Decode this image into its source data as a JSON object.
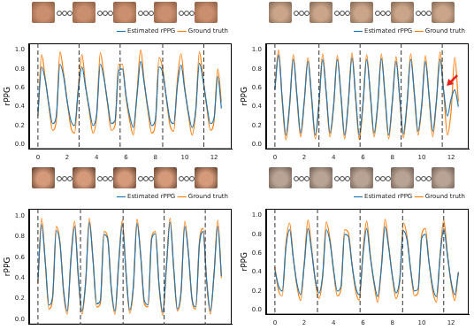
{
  "chart_data": [
    {
      "type": "line",
      "y_label": "rPPG",
      "x": [
        0,
        0.25,
        0.5,
        0.75,
        1,
        1.25,
        1.5,
        1.75,
        2,
        2.25,
        2.5,
        2.75,
        3,
        3.25,
        3.5,
        3.75,
        4,
        4.25,
        4.5,
        4.75,
        5,
        5.25,
        5.5,
        5.75,
        6,
        6.25,
        6.5,
        6.75,
        7,
        7.25,
        7.5,
        7.75,
        8,
        8.25,
        8.5,
        8.75,
        9,
        9.25,
        9.5,
        9.75,
        10,
        10.25,
        10.5,
        10.75,
        11,
        11.25,
        11.5,
        11.75,
        12,
        12.25,
        12.5
      ],
      "series": [
        {
          "name": "Estimated rPPG",
          "color": "#1f77b4",
          "values": [
            0.32,
            0.82,
            0.68,
            0.42,
            0.22,
            0.3,
            0.85,
            0.72,
            0.45,
            0.25,
            0.2,
            0.58,
            0.82,
            0.6,
            0.38,
            0.2,
            0.32,
            0.85,
            0.7,
            0.44,
            0.22,
            0.25,
            0.78,
            0.8,
            0.52,
            0.3,
            0.18,
            0.52,
            0.88,
            0.64,
            0.38,
            0.2,
            0.26,
            0.82,
            0.76,
            0.5,
            0.26,
            0.22,
            0.62,
            0.84,
            0.58,
            0.34,
            0.18,
            0.36,
            0.86,
            0.68,
            0.42,
            0.22,
            0.28,
            0.72,
            0.38
          ]
        },
        {
          "name": "Ground truth",
          "color": "#ff7f0e",
          "values": [
            0.3,
            0.95,
            0.7,
            0.4,
            0.15,
            0.25,
            0.98,
            0.75,
            0.45,
            0.18,
            0.12,
            0.6,
            0.95,
            0.62,
            0.35,
            0.12,
            0.3,
            0.97,
            0.72,
            0.42,
            0.15,
            0.2,
            0.85,
            0.85,
            0.5,
            0.25,
            0.1,
            0.55,
            1.0,
            0.65,
            0.35,
            0.12,
            0.22,
            0.92,
            0.8,
            0.48,
            0.2,
            0.14,
            0.68,
            0.96,
            0.6,
            0.32,
            0.1,
            0.35,
            0.98,
            0.7,
            0.4,
            0.15,
            0.25,
            0.8,
            0.45
          ]
        }
      ],
      "xlim": [
        -0.6,
        13.2
      ],
      "xticks": [
        0,
        2,
        4,
        6,
        8,
        10,
        12
      ],
      "ylim": [
        -0.05,
        1.07
      ],
      "yticks": [
        {
          "value": 0,
          "label": "0.0"
        },
        0.2,
        0.4,
        0.6,
        0.8,
        {
          "value": 1,
          "label": "1.0"
        }
      ],
      "vlines": [
        0,
        2.8,
        5.6,
        8.5,
        11.3
      ],
      "legend": "upper right",
      "grid": false
    },
    {
      "type": "line",
      "y_label": "rPPG",
      "x": [
        0,
        0.25,
        0.5,
        0.75,
        1,
        1.25,
        1.5,
        1.75,
        2,
        2.25,
        2.5,
        2.75,
        3,
        3.25,
        3.5,
        3.75,
        4,
        4.25,
        4.5,
        4.75,
        5,
        5.25,
        5.5,
        5.75,
        6,
        6.25,
        6.5,
        6.75,
        7,
        7.25,
        7.5,
        7.75,
        8,
        8.25,
        8.5,
        8.75,
        9,
        9.25,
        9.5,
        9.75,
        10,
        10.25,
        10.5,
        10.75,
        11,
        11.25,
        11.5,
        11.75,
        12,
        12.25,
        12.5
      ],
      "series": [
        {
          "name": "Estimated rPPG",
          "color": "#1f77b4",
          "values": [
            0.58,
            0.95,
            0.48,
            0.1,
            0.42,
            0.9,
            0.52,
            0.12,
            0.46,
            0.88,
            0.5,
            0.1,
            0.44,
            0.9,
            0.54,
            0.12,
            0.42,
            0.9,
            0.52,
            0.1,
            0.45,
            0.92,
            0.5,
            0.1,
            0.44,
            0.9,
            0.54,
            0.12,
            0.42,
            0.91,
            0.52,
            0.1,
            0.46,
            0.88,
            0.5,
            0.11,
            0.44,
            0.9,
            0.54,
            0.14,
            0.42,
            0.88,
            0.52,
            0.14,
            0.46,
            0.9,
            0.56,
            0.3,
            0.48,
            0.58,
            0.4
          ]
        },
        {
          "name": "Ground truth",
          "color": "#ff7f0e",
          "values": [
            0.6,
            1.0,
            0.45,
            0.05,
            0.4,
            0.95,
            0.5,
            0.08,
            0.45,
            0.92,
            0.48,
            0.06,
            0.42,
            0.96,
            0.52,
            0.08,
            0.4,
            0.94,
            0.5,
            0.06,
            0.44,
            0.97,
            0.48,
            0.05,
            0.42,
            0.95,
            0.52,
            0.08,
            0.4,
            0.96,
            0.5,
            0.06,
            0.45,
            0.93,
            0.48,
            0.07,
            0.42,
            0.96,
            0.52,
            0.1,
            0.4,
            0.94,
            0.5,
            0.08,
            0.45,
            0.98,
            0.55,
            0.1,
            0.35,
            0.92,
            0.45
          ]
        }
      ],
      "xlim": [
        -0.6,
        13.2
      ],
      "xticks": [
        0,
        2,
        4,
        6,
        8,
        10,
        12
      ],
      "ylim": [
        -0.05,
        1.07
      ],
      "yticks": [
        {
          "value": 0,
          "label": "0.0"
        },
        0.2,
        0.4,
        0.6,
        0.8,
        {
          "value": 1,
          "label": "1.0"
        }
      ],
      "vlines": [
        0,
        3.0,
        5.8,
        8.6,
        11.4
      ],
      "arrow": {
        "x": 11.7,
        "y": 0.62,
        "color": "#e8201a"
      },
      "legend": "upper right",
      "grid": false
    },
    {
      "type": "line",
      "y_label": "rPPG",
      "x": [
        0,
        0.25,
        0.5,
        0.75,
        1,
        1.25,
        1.5,
        1.75,
        2,
        2.25,
        2.5,
        2.75,
        3,
        3.25,
        3.5,
        3.75,
        4,
        4.25,
        4.5,
        4.75,
        5,
        5.25,
        5.5,
        5.75,
        6,
        6.25,
        6.5,
        6.75,
        7,
        7.25,
        7.5,
        7.75,
        8,
        8.25,
        8.5,
        8.75,
        9,
        9.25,
        9.5,
        9.75,
        10,
        10.25,
        10.5,
        10.75,
        11,
        11.25,
        11.5,
        11.75,
        12,
        12.25,
        12.5
      ],
      "series": [
        {
          "name": "Estimated rPPG",
          "color": "#1f77b4",
          "values": [
            0.38,
            0.92,
            0.56,
            0.14,
            0.22,
            0.86,
            0.74,
            0.28,
            0.08,
            0.58,
            0.9,
            0.42,
            0.08,
            0.36,
            0.94,
            0.58,
            0.15,
            0.18,
            0.82,
            0.78,
            0.3,
            0.08,
            0.54,
            0.92,
            0.46,
            0.09,
            0.32,
            0.93,
            0.62,
            0.18,
            0.14,
            0.78,
            0.83,
            0.34,
            0.07,
            0.5,
            0.94,
            0.5,
            0.1,
            0.27,
            0.9,
            0.64,
            0.2,
            0.12,
            0.72,
            0.85,
            0.37,
            0.08,
            0.44,
            0.9,
            0.42
          ]
        },
        {
          "name": "Ground truth",
          "color": "#ff7f0e",
          "values": [
            0.35,
            0.98,
            0.55,
            0.1,
            0.2,
            0.9,
            0.75,
            0.25,
            0.05,
            0.6,
            0.95,
            0.4,
            0.05,
            0.35,
            0.98,
            0.58,
            0.12,
            0.15,
            0.85,
            0.8,
            0.28,
            0.05,
            0.55,
            0.96,
            0.45,
            0.06,
            0.3,
            0.97,
            0.62,
            0.15,
            0.12,
            0.8,
            0.85,
            0.32,
            0.04,
            0.5,
            0.98,
            0.48,
            0.08,
            0.25,
            0.95,
            0.65,
            0.18,
            0.1,
            0.75,
            0.88,
            0.35,
            0.05,
            0.45,
            0.96,
            0.4
          ]
        }
      ],
      "xlim": [
        -0.6,
        13.2
      ],
      "ylim": [
        -0.05,
        1.07
      ],
      "yticks": [
        {
          "value": 0,
          "label": "0.0"
        },
        0.2,
        0.4,
        0.6,
        0.8,
        {
          "value": 1,
          "label": "1.0"
        }
      ],
      "vlines": [
        0,
        2.9,
        5.8,
        8.6,
        11.4
      ],
      "tick_labels": "y",
      "legend": "upper right",
      "grid": false
    },
    {
      "type": "line",
      "y_label": "rPPG",
      "x": [
        0,
        0.25,
        0.5,
        0.75,
        1,
        1.25,
        1.5,
        1.75,
        2,
        2.25,
        2.5,
        2.75,
        3,
        3.25,
        3.5,
        3.75,
        4,
        4.25,
        4.5,
        4.75,
        5,
        5.25,
        5.5,
        5.75,
        6,
        6.25,
        6.5,
        6.75,
        7,
        7.25,
        7.5,
        7.75,
        8,
        8.25,
        8.5,
        8.75,
        9,
        9.25,
        9.5,
        9.75,
        10,
        10.25,
        10.5,
        10.75,
        11,
        11.25,
        11.5,
        11.75,
        12,
        12.25,
        12.5
      ],
      "series": [
        {
          "name": "Estimated rPPG",
          "color": "#1f77b4",
          "values": [
            0.42,
            0.25,
            0.2,
            0.66,
            0.85,
            0.55,
            0.28,
            0.16,
            0.48,
            0.86,
            0.62,
            0.32,
            0.18,
            0.36,
            0.85,
            0.72,
            0.42,
            0.2,
            0.25,
            0.8,
            0.78,
            0.48,
            0.24,
            0.16,
            0.58,
            0.86,
            0.56,
            0.3,
            0.14,
            0.44,
            0.88,
            0.66,
            0.36,
            0.18,
            0.32,
            0.84,
            0.74,
            0.42,
            0.2,
            0.22,
            0.76,
            0.8,
            0.5,
            0.24,
            0.14,
            0.56,
            0.86,
            0.58,
            0.3,
            0.16,
            0.4
          ]
        },
        {
          "name": "Ground truth",
          "color": "#ff7f0e",
          "values": [
            0.45,
            0.2,
            0.15,
            0.7,
            0.92,
            0.55,
            0.25,
            0.1,
            0.5,
            0.95,
            0.65,
            0.3,
            0.12,
            0.35,
            0.93,
            0.75,
            0.4,
            0.15,
            0.22,
            0.85,
            0.82,
            0.48,
            0.2,
            0.1,
            0.62,
            0.94,
            0.58,
            0.28,
            0.08,
            0.45,
            0.96,
            0.68,
            0.35,
            0.12,
            0.3,
            0.92,
            0.78,
            0.42,
            0.15,
            0.18,
            0.8,
            0.86,
            0.5,
            0.2,
            0.08,
            0.58,
            0.95,
            0.6,
            0.28,
            0.1,
            0.4
          ]
        }
      ],
      "xlim": [
        -0.6,
        13.2
      ],
      "xticks": [
        0,
        2,
        4,
        6,
        8,
        10,
        12
      ],
      "ylim": [
        -0.05,
        1.07
      ],
      "yticks": [
        {
          "value": 0,
          "label": "0.0"
        },
        0.2,
        0.4,
        0.6,
        0.8,
        {
          "value": 1,
          "label": "1.0"
        }
      ],
      "vlines": [
        0,
        2.9,
        5.8,
        8.7,
        11.5
      ],
      "legend": "upper right",
      "grid": false
    }
  ]
}
